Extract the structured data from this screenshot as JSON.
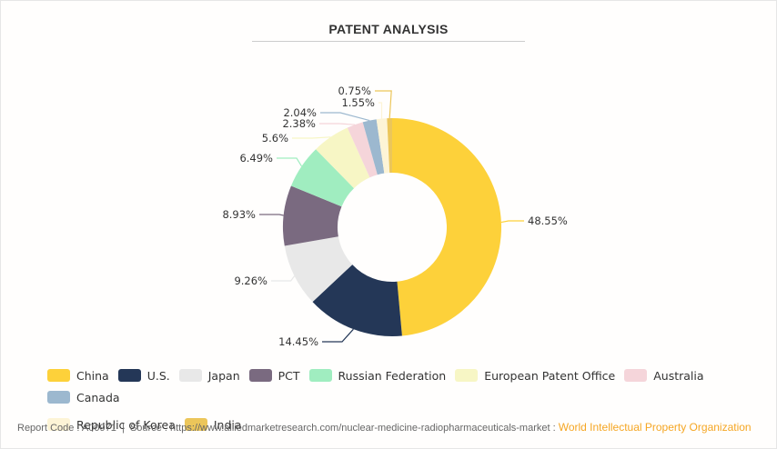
{
  "header": {
    "title": "PATENT ANALYSIS"
  },
  "chart_data": {
    "type": "pie",
    "subtype": "donut",
    "title": "PATENT ANALYSIS",
    "start_angle": "top",
    "direction": "clockwise",
    "legend_placement": "bottom",
    "categories": [
      "China",
      "U.S.",
      "Japan",
      "PCT",
      "Russian Federation",
      "European Patent Office",
      "Australia",
      "Canada",
      "Republic of Korea",
      "India"
    ],
    "values": [
      48.55,
      14.45,
      9.26,
      8.93,
      6.49,
      5.6,
      2.38,
      2.04,
      1.55,
      0.75
    ],
    "data_labels": [
      "48.55%",
      "14.45%",
      "9.26%",
      "8.93%",
      "6.49%",
      "5.6%",
      "2.38%",
      "2.04%",
      "1.55%",
      "0.75%"
    ],
    "colors": [
      "#fdd13a",
      "#243757",
      "#e8e8e8",
      "#7a6a80",
      "#a0edc0",
      "#f7f6c5",
      "#f5d5da",
      "#9cb8cf",
      "#fdf4d6",
      "#ecc65a"
    ],
    "unit": "%"
  },
  "footer": {
    "report_code": "Report Code : A00971",
    "separator": "|",
    "source": "Source : https://www.alliedmarketresearch.com/nuclear-medicine-radiopharmaceuticals-market :",
    "organization": "World Intellectual Property Organization"
  }
}
